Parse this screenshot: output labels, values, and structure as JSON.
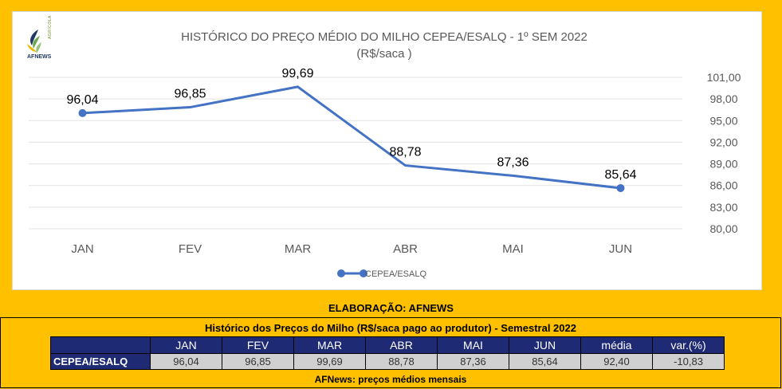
{
  "logo": {
    "text": "AFNEWS",
    "side_text": "AGRÍCOLA"
  },
  "chart_data": {
    "type": "line",
    "title": "HISTÓRICO DO PREÇO MÉDIO DO MILHO CEPEA/ESALQ - 1º SEM  2022",
    "subtitle": "(R$/saca )",
    "categories": [
      "JAN",
      "FEV",
      "MAR",
      "ABR",
      "MAI",
      "JUN"
    ],
    "series": [
      {
        "name": "CEPEA/ESALQ",
        "values": [
          96.04,
          96.85,
          99.69,
          88.78,
          87.36,
          85.64
        ],
        "labels": [
          "96,04",
          "96,85",
          "99,69",
          "88,78",
          "87,36",
          "85,64"
        ]
      }
    ],
    "ylim": [
      80,
      101
    ],
    "yticks": [
      "101,00",
      "98,00",
      "95,00",
      "92,00",
      "89,00",
      "86,00",
      "83,00",
      "80,00"
    ],
    "ytick_values": [
      101,
      98,
      95,
      92,
      89,
      86,
      83,
      80
    ],
    "grid": true,
    "legend_position": "bottom",
    "line_color": "#4472c4"
  },
  "elaboracao": "ELABORAÇÃO: AFNEWS",
  "table": {
    "title": "Histórico dos Preços do Milho (R$/saca pago ao produtor) - Semestral 2022",
    "headers": [
      "JAN",
      "FEV",
      "MAR",
      "ABR",
      "MAI",
      "JUN",
      "média",
      "var.(%)"
    ],
    "row_label": "CEPEA/ESALQ",
    "values": [
      "96,04",
      "96,85",
      "99,69",
      "88,78",
      "87,36",
      "85,64",
      "92,40",
      "-10,83"
    ]
  },
  "footnote": "AFNews: preços médios mensais",
  "colors": {
    "background": "#ffc000",
    "header": "#1f2a75",
    "cell": "#d0d0d0"
  }
}
